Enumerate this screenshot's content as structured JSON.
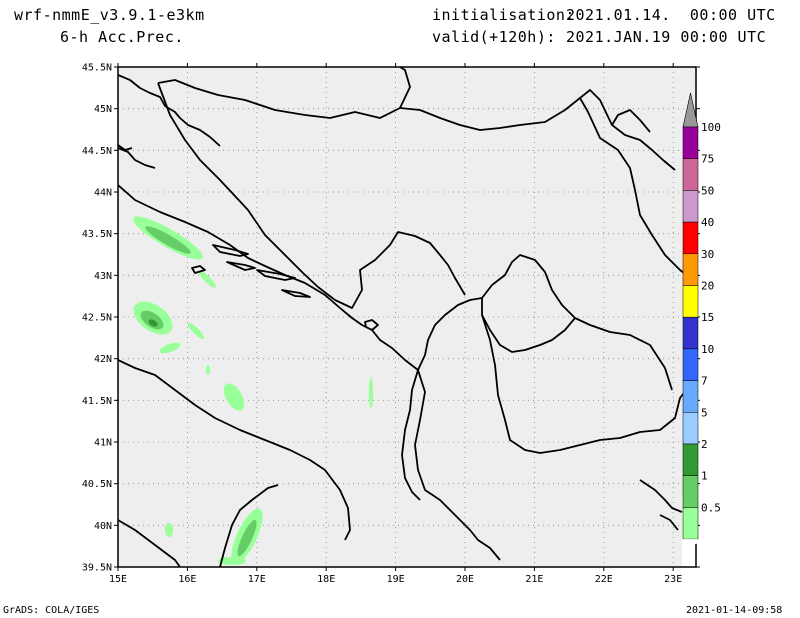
{
  "header": {
    "model": "wrf-nmmE_v3.9.1-e3km",
    "field": "6-h Acc.Prec.",
    "init_label": "initialisation:",
    "init_value": "2021.01.14.  00:00 UTC",
    "valid_label": "valid(+120h):",
    "valid_value": "2021.JAN.19 00:00 UTC"
  },
  "map": {
    "lat_labels": [
      "45.5N",
      "45N",
      "44.5N",
      "44N",
      "43.5N",
      "43N",
      "42.5N",
      "42N",
      "41.5N",
      "41N",
      "40.5N",
      "40N",
      "39.5N"
    ],
    "lon_labels": [
      "15E",
      "16E",
      "17E",
      "18E",
      "19E",
      "20E",
      "21E",
      "22E",
      "23E"
    ],
    "background_color": "#eeeeee"
  },
  "colorbar": {
    "labels": [
      "100",
      "75",
      "50",
      "40",
      "30",
      "20",
      "15",
      "10",
      "7",
      "5",
      "2",
      "1",
      "0.5"
    ],
    "colors": [
      "#999999",
      "#990099",
      "#cc6699",
      "#cc99cc",
      "#ff0000",
      "#ff9900",
      "#ffff00",
      "#3333cc",
      "#3366ff",
      "#66aaff",
      "#99ccff",
      "#339933",
      "#66cc66",
      "#99ff99"
    ]
  },
  "footer": {
    "left": "GrADS: COLA/IGES",
    "right": "2021-01-14-09:58"
  }
}
